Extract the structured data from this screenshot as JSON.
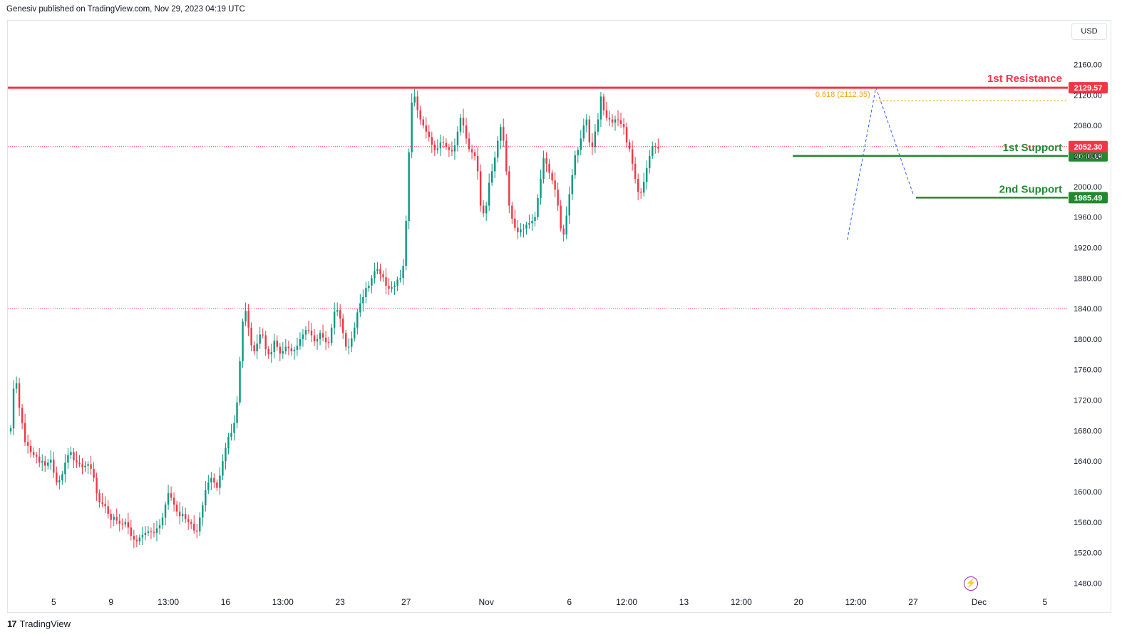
{
  "header": {
    "publisher_line": "Genesiv published on TradingView.com, Nov 29, 2023 04:19 UTC"
  },
  "currency_button": "USD",
  "footer": {
    "logo_mark": "17",
    "brand": "TradingView"
  },
  "colors": {
    "up": "#089981",
    "down": "#f23645",
    "resistance": "#f23645",
    "support": "#22892f",
    "fib": "#f3a51c",
    "pattern": "#2962ff",
    "grid_dotted": "#f23645"
  },
  "icons": {
    "flash": "lightning-icon"
  },
  "chart_data": {
    "type": "candlestick",
    "title": "",
    "ylim": [
      1460,
      2180
    ],
    "y_ticks": [
      "2160.00",
      "2120.00",
      "2080.00",
      "2040.00",
      "2000.00",
      "1960.00",
      "1920.00",
      "1880.00",
      "1840.00",
      "1800.00",
      "1760.00",
      "1720.00",
      "1680.00",
      "1640.00",
      "1600.00",
      "1560.00",
      "1520.00",
      "1480.00"
    ],
    "x_ticks": [
      {
        "label": "5",
        "i": 15
      },
      {
        "label": "9",
        "i": 35
      },
      {
        "label": "13:00",
        "i": 55
      },
      {
        "label": "16",
        "i": 75
      },
      {
        "label": "13:00",
        "i": 95
      },
      {
        "label": "23",
        "i": 115
      },
      {
        "label": "27",
        "i": 138
      },
      {
        "label": "Nov",
        "i": 166
      },
      {
        "label": "6",
        "i": 195
      },
      {
        "label": "12:00",
        "i": 215
      },
      {
        "label": "13",
        "i": 235
      },
      {
        "label": "12:00",
        "i": 255
      },
      {
        "label": "20",
        "i": 275
      },
      {
        "label": "12:00",
        "i": 295
      },
      {
        "label": "27",
        "i": 315
      },
      {
        "label": "Dec",
        "i": 338
      },
      {
        "label": "5",
        "i": 361
      }
    ],
    "x_range": [
      -1,
      369
    ],
    "closes": [
      1683,
      1735,
      1742,
      1710,
      1690,
      1665,
      1660,
      1652,
      1648,
      1646,
      1638,
      1640,
      1634,
      1638,
      1642,
      1625,
      1612,
      1615,
      1623,
      1638,
      1648,
      1652,
      1641,
      1638,
      1636,
      1632,
      1634,
      1636,
      1630,
      1618,
      1598,
      1586,
      1584,
      1581,
      1571,
      1563,
      1567,
      1562,
      1558,
      1557,
      1560,
      1553,
      1542,
      1537,
      1535,
      1540,
      1543,
      1546,
      1548,
      1547,
      1546,
      1552,
      1556,
      1566,
      1583,
      1598,
      1592,
      1583,
      1574,
      1568,
      1571,
      1564,
      1560,
      1558,
      1549,
      1548,
      1566,
      1582,
      1602,
      1612,
      1618,
      1612,
      1605,
      1621,
      1640,
      1657,
      1672,
      1677,
      1690,
      1717,
      1771,
      1823,
      1837,
      1815,
      1792,
      1784,
      1794,
      1806,
      1805,
      1787,
      1780,
      1783,
      1798,
      1790,
      1781,
      1784,
      1790,
      1788,
      1784,
      1786,
      1791,
      1800,
      1806,
      1812,
      1811,
      1805,
      1797,
      1800,
      1808,
      1802,
      1796,
      1795,
      1815,
      1836,
      1838,
      1827,
      1808,
      1790,
      1790,
      1801,
      1815,
      1835,
      1847,
      1855,
      1867,
      1870,
      1880,
      1889,
      1892,
      1885,
      1881,
      1870,
      1866,
      1868,
      1870,
      1878,
      1880,
      1896,
      1955,
      2045,
      2110,
      2118,
      2100,
      2088,
      2080,
      2072,
      2065,
      2055,
      2048,
      2050,
      2058,
      2057,
      2052,
      2048,
      2046,
      2054,
      2072,
      2090,
      2080,
      2063,
      2049,
      2045,
      2040,
      2020,
      1975,
      1965,
      1975,
      2005,
      2020,
      2038,
      2060,
      2078,
      2060,
      2020,
      1975,
      1958,
      1946,
      1940,
      1944,
      1945,
      1950,
      1952,
      1955,
      1960,
      1985,
      2010,
      2037,
      2030,
      2018,
      2008,
      1996,
      1975,
      1945,
      1937,
      1962,
      1990,
      2015,
      2041,
      2048,
      2063,
      2080,
      2088,
      2058,
      2052,
      2072,
      2088,
      2118,
      2100,
      2090,
      2088,
      2084,
      2088,
      2087,
      2082,
      2078,
      2058,
      2049,
      2030,
      2010,
      1993,
      1992,
      2006,
      2024,
      2040,
      2053,
      2052,
      2050
    ],
    "levels": [
      {
        "name": "1st Resistance",
        "value": 2129.57,
        "label": "2129.57"
      },
      {
        "name": "1st Support",
        "value": 2040.19,
        "label": "2040.19"
      },
      {
        "name": "2nd Support",
        "value": 1985.49,
        "label": "1985.49"
      }
    ],
    "last_price": {
      "value": 2052.3,
      "label": "2052.30"
    },
    "dotted_level": 1840,
    "fib": {
      "label": "0.618 (2112.35)",
      "value": 2112.35
    },
    "pattern_points": [
      [
        292,
        1930
      ],
      [
        302,
        2130
      ],
      [
        315,
        1990
      ]
    ]
  }
}
